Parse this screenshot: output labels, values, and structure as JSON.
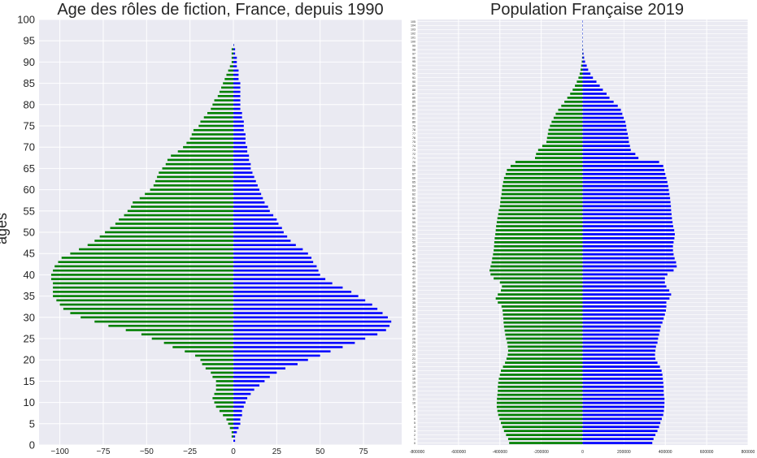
{
  "chart_data": [
    {
      "type": "bar",
      "orientation": "horizontal",
      "title": "Age des rôles de fiction, France, depuis 1990",
      "ylabel": "ages",
      "xlim": [
        -112,
        97
      ],
      "ylim": [
        0,
        100
      ],
      "xticks": [
        "−100",
        "−75",
        "−50",
        "−25",
        "0",
        "25",
        "50",
        "75"
      ],
      "xtick_values": [
        -100,
        -75,
        -50,
        -25,
        0,
        25,
        50,
        75
      ],
      "yticks": [
        "0",
        "5",
        "10",
        "15",
        "20",
        "25",
        "30",
        "35",
        "40",
        "45",
        "50",
        "55",
        "60",
        "65",
        "70",
        "75",
        "80",
        "85",
        "90",
        "95",
        "100"
      ],
      "ytick_values": [
        0,
        5,
        10,
        15,
        20,
        25,
        30,
        35,
        40,
        45,
        50,
        55,
        60,
        65,
        70,
        75,
        80,
        85,
        90,
        95,
        100
      ],
      "grid": true,
      "categories": [
        1,
        2,
        3,
        4,
        5,
        6,
        7,
        8,
        9,
        10,
        11,
        12,
        13,
        14,
        15,
        16,
        17,
        18,
        19,
        20,
        21,
        22,
        23,
        24,
        25,
        26,
        27,
        28,
        29,
        30,
        31,
        32,
        33,
        34,
        35,
        36,
        37,
        38,
        39,
        40,
        41,
        42,
        43,
        44,
        45,
        46,
        47,
        48,
        49,
        50,
        51,
        52,
        53,
        54,
        55,
        56,
        57,
        58,
        59,
        60,
        61,
        62,
        63,
        64,
        65,
        66,
        67,
        68,
        69,
        70,
        71,
        72,
        73,
        74,
        75,
        76,
        77,
        78,
        79,
        80,
        81,
        82,
        83,
        84,
        85,
        86,
        87,
        88,
        89,
        90,
        91,
        92,
        93,
        94
      ],
      "series": [
        {
          "color": "#008000",
          "values": [
            0,
            -1,
            -1,
            -2,
            -3,
            -4,
            -6,
            -8,
            -10,
            -11,
            -12,
            -11,
            -10,
            -10,
            -10,
            -12,
            -13,
            -16,
            -18,
            -19,
            -22,
            -28,
            -35,
            -40,
            -47,
            -53,
            -62,
            -72,
            -80,
            -88,
            -94,
            -98,
            -100,
            -102,
            -104,
            -104,
            -104,
            -104,
            -105,
            -105,
            -104,
            -103,
            -101,
            -99,
            -94,
            -89,
            -84,
            -80,
            -77,
            -74,
            -71,
            -68,
            -66,
            -63,
            -61,
            -59,
            -58,
            -54,
            -51,
            -48,
            -46,
            -45,
            -44,
            -43,
            -41,
            -39,
            -38,
            -36,
            -32,
            -29,
            -27,
            -25,
            -24,
            -23,
            -20,
            -19,
            -17,
            -15,
            -13,
            -12,
            -11,
            -9,
            -8,
            -7,
            -6,
            -5,
            -4,
            -3,
            -2,
            -1,
            -1,
            -1,
            -1,
            0
          ]
        },
        {
          "color": "#0000ff",
          "values": [
            1,
            1,
            2,
            3,
            4,
            4,
            5,
            5,
            6,
            7,
            8,
            10,
            12,
            15,
            18,
            21,
            25,
            30,
            37,
            43,
            50,
            56,
            63,
            70,
            76,
            83,
            88,
            90,
            91,
            89,
            86,
            83,
            80,
            76,
            72,
            68,
            63,
            57,
            53,
            50,
            49,
            48,
            46,
            45,
            43,
            40,
            36,
            33,
            31,
            29,
            28,
            26,
            25,
            23,
            21,
            20,
            18,
            17,
            16,
            15,
            14,
            13,
            12,
            11,
            10,
            10,
            9,
            9,
            8,
            8,
            7,
            7,
            7,
            6,
            6,
            6,
            5,
            5,
            4,
            4,
            4,
            4,
            4,
            4,
            4,
            3,
            3,
            3,
            2,
            2,
            2,
            1,
            1,
            0
          ]
        }
      ]
    },
    {
      "type": "bar",
      "orientation": "horizontal",
      "title": "Population Française 2019",
      "xlim": [
        -800000,
        800000
      ],
      "xticks": [
        "-800000",
        "-600000",
        "-400000",
        "-200000",
        "0",
        "200000",
        "400000",
        "600000",
        "800000"
      ],
      "xtick_values": [
        -800000,
        -600000,
        -400000,
        -200000,
        0,
        200000,
        400000,
        600000,
        800000
      ],
      "grid": true,
      "categories": [
        0,
        1,
        2,
        3,
        4,
        5,
        6,
        7,
        8,
        9,
        10,
        11,
        12,
        13,
        14,
        15,
        16,
        17,
        18,
        19,
        20,
        21,
        22,
        23,
        24,
        25,
        26,
        27,
        28,
        29,
        30,
        31,
        32,
        33,
        34,
        35,
        36,
        37,
        38,
        39,
        40,
        41,
        42,
        43,
        44,
        45,
        46,
        47,
        48,
        49,
        50,
        51,
        52,
        53,
        54,
        55,
        56,
        57,
        58,
        59,
        60,
        61,
        62,
        63,
        64,
        65,
        66,
        67,
        68,
        69,
        70,
        71,
        72,
        73,
        74,
        75,
        76,
        77,
        78,
        79,
        80,
        81,
        82,
        83,
        84,
        85,
        86,
        87,
        88,
        89,
        90,
        91,
        92,
        93,
        94,
        95,
        96,
        97,
        98,
        99,
        100,
        101,
        102,
        103,
        104,
        105
      ],
      "series": [
        {
          "color": "#008000",
          "values": [
            -355000,
            -360000,
            -370000,
            -380000,
            -388000,
            -395000,
            -402000,
            -408000,
            -412000,
            -415000,
            -415000,
            -414000,
            -412000,
            -410000,
            -410000,
            -408000,
            -405000,
            -400000,
            -395000,
            -385000,
            -375000,
            -368000,
            -362000,
            -360000,
            -362000,
            -365000,
            -370000,
            -374000,
            -377000,
            -380000,
            -382000,
            -383000,
            -385000,
            -387000,
            -392000,
            -410000,
            -420000,
            -410000,
            -395000,
            -390000,
            -400000,
            -430000,
            -445000,
            -450000,
            -445000,
            -440000,
            -437000,
            -433000,
            -430000,
            -428000,
            -427000,
            -425000,
            -422000,
            -420000,
            -418000,
            -415000,
            -412000,
            -408000,
            -405000,
            -400000,
            -398000,
            -396000,
            -392000,
            -390000,
            -388000,
            -384000,
            -380000,
            -372000,
            -366000,
            -348000,
            -325000,
            -230000,
            -225000,
            -215000,
            -195000,
            -175000,
            -172000,
            -168000,
            -165000,
            -158000,
            -150000,
            -140000,
            -130000,
            -118000,
            -103000,
            -88000,
            -74000,
            -60000,
            -48000,
            -37000,
            -28000,
            -20000,
            -14000,
            -10000,
            -7000,
            -4000,
            -2500,
            -1500,
            -900,
            -500,
            -300,
            -150,
            -80,
            -40,
            -20,
            -10
          ]
        },
        {
          "color": "#0000ff",
          "values": [
            337000,
            343000,
            352000,
            362000,
            370000,
            376000,
            383000,
            390000,
            393000,
            395000,
            396000,
            396000,
            393000,
            392000,
            392000,
            390000,
            388000,
            386000,
            382000,
            374000,
            362000,
            352000,
            350000,
            352000,
            355000,
            362000,
            365000,
            370000,
            374000,
            378000,
            386000,
            392000,
            398000,
            403000,
            405000,
            405000,
            420000,
            428000,
            419000,
            405000,
            398000,
            398000,
            410000,
            440000,
            455000,
            452000,
            445000,
            440000,
            437000,
            437000,
            440000,
            444000,
            446000,
            443000,
            438000,
            435000,
            432000,
            430000,
            428000,
            427000,
            425000,
            423000,
            420000,
            417000,
            414000,
            410000,
            405000,
            400000,
            395000,
            390000,
            370000,
            270000,
            255000,
            233000,
            229000,
            224000,
            222000,
            218000,
            213000,
            211000,
            207000,
            199000,
            192000,
            185000,
            170000,
            150000,
            130000,
            116000,
            98000,
            83000,
            67000,
            50000,
            38000,
            27000,
            20000,
            12000,
            7500,
            4500,
            2500,
            1400,
            700,
            350,
            170,
            80,
            40,
            15
          ]
        }
      ]
    }
  ]
}
